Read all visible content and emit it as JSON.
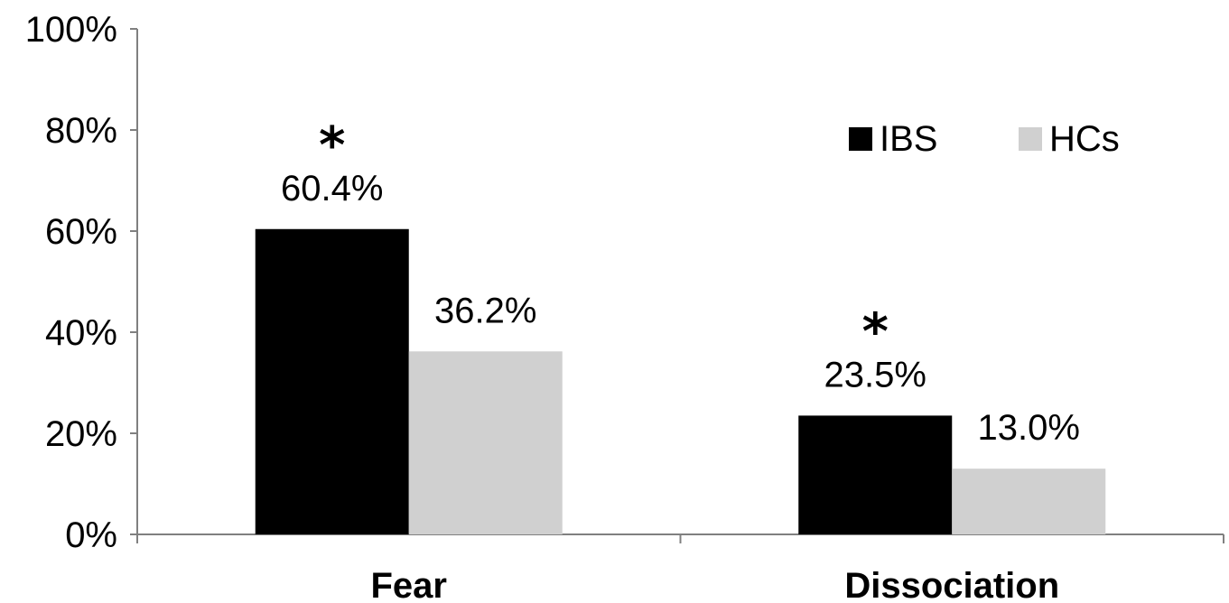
{
  "chart_data": {
    "type": "bar",
    "title": "",
    "xlabel": "",
    "ylabel": "",
    "categories": [
      "Fear",
      "Dissociation"
    ],
    "series": [
      {
        "name": "IBS",
        "values": [
          60.4,
          23.5
        ],
        "value_labels": [
          "60.4%",
          "23.5%"
        ],
        "color": "#000000"
      },
      {
        "name": "HCs",
        "values": [
          36.2,
          13.0
        ],
        "value_labels": [
          "36.2%",
          "13.0%"
        ],
        "color": "#d0d0d0"
      }
    ],
    "ylim": [
      0,
      100
    ],
    "y_ticks": [
      0,
      20,
      40,
      60,
      80,
      100
    ],
    "y_tick_labels": [
      "0%",
      "20%",
      "40%",
      "60%",
      "80%",
      "100%"
    ],
    "grid": false,
    "legend_position": "top-right",
    "annotations": [
      {
        "category": "Fear",
        "series": "IBS",
        "text": "*"
      },
      {
        "category": "Dissociation",
        "series": "IBS",
        "text": "*"
      }
    ]
  }
}
